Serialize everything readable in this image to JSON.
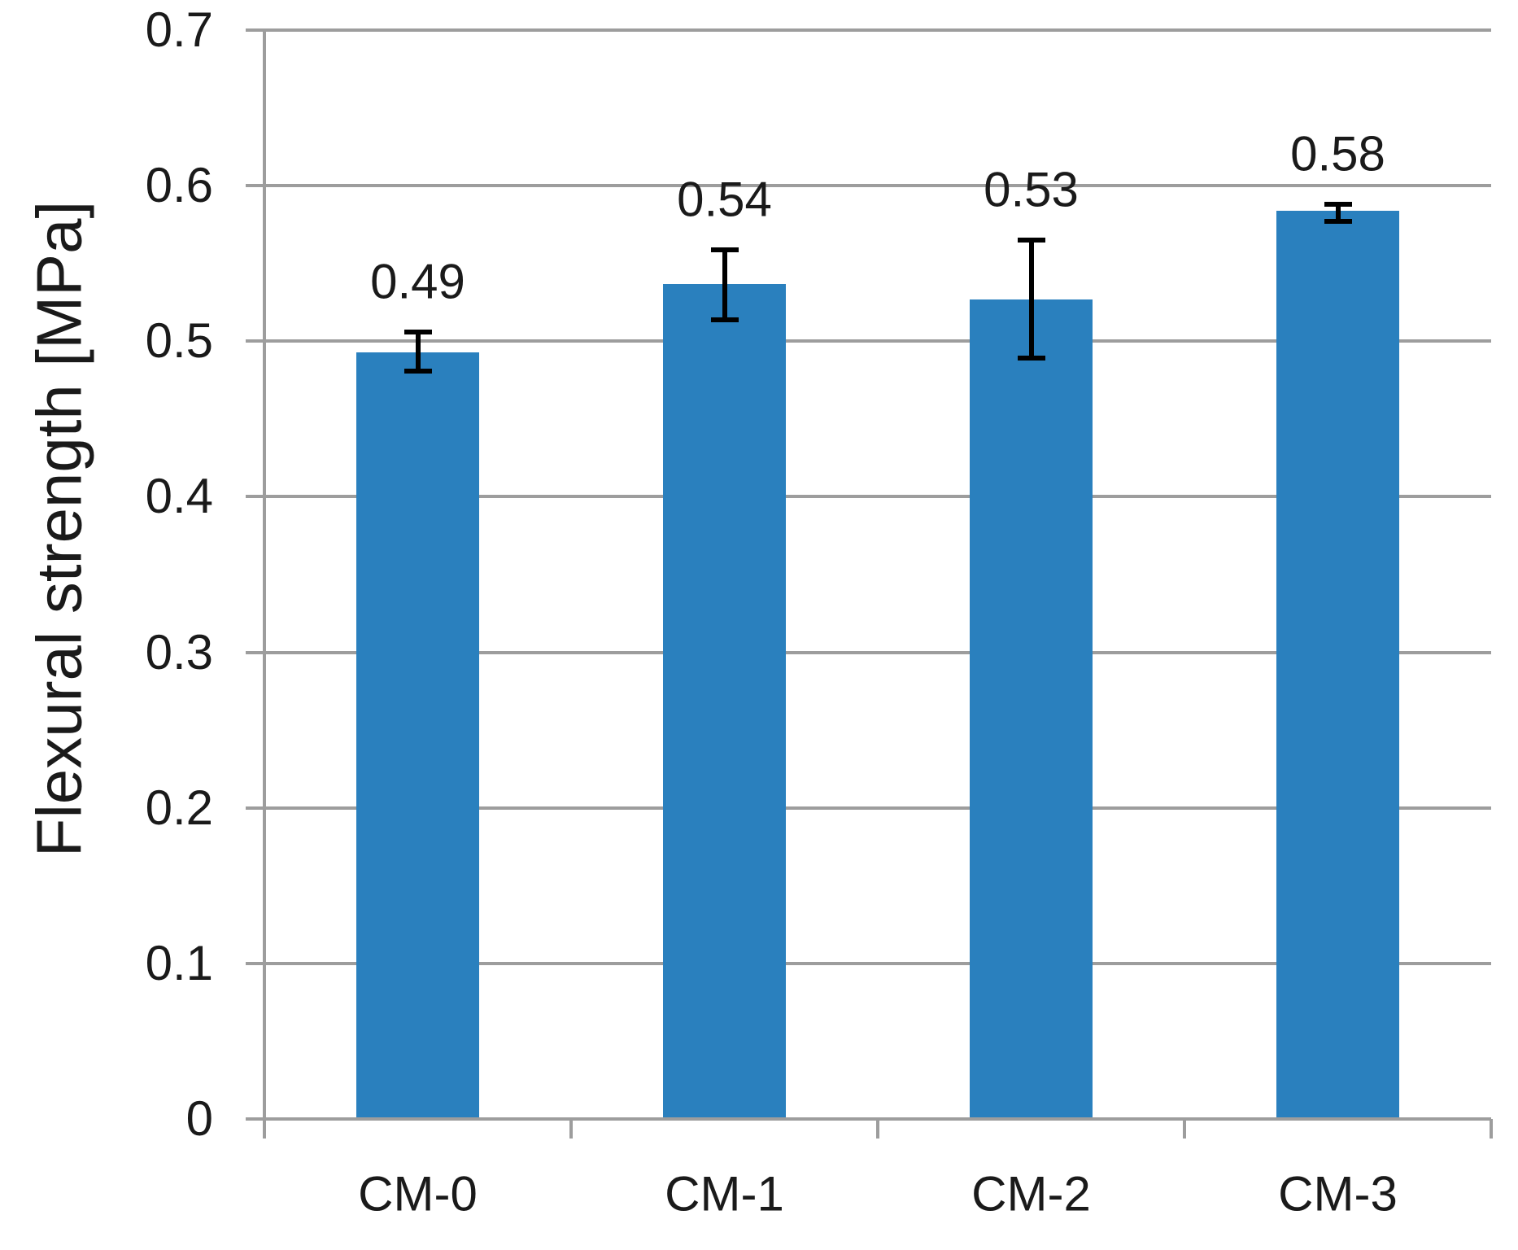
{
  "chart_data": {
    "type": "bar",
    "title": "",
    "xlabel": "",
    "ylabel": "Flexural strength [MPa]",
    "categories": [
      "CM-0",
      "CM-1",
      "CM-2",
      "CM-3"
    ],
    "series": [
      {
        "name": "Flexural strength",
        "values": [
          0.493,
          0.537,
          0.527,
          0.584
        ],
        "data_labels": [
          "0.49",
          "0.54",
          "0.53",
          "0.58"
        ],
        "error_plus": [
          0.013,
          0.022,
          0.038,
          0.004
        ],
        "error_minus": [
          0.012,
          0.023,
          0.038,
          0.007
        ]
      }
    ],
    "ylim": [
      0,
      0.7
    ],
    "ytick_labels": [
      "0",
      "0.1",
      "0.2",
      "0.3",
      "0.4",
      "0.5",
      "0.6",
      "0.7"
    ],
    "ytick_values": [
      0,
      0.1,
      0.2,
      0.3,
      0.4,
      0.5,
      0.6,
      0.7
    ],
    "grid": true,
    "legend": false,
    "bar_color": "#2A80BE",
    "grid_color": "#9D9D9D",
    "text_color": "#1A1A1A",
    "error_bar_color": "#000000"
  }
}
